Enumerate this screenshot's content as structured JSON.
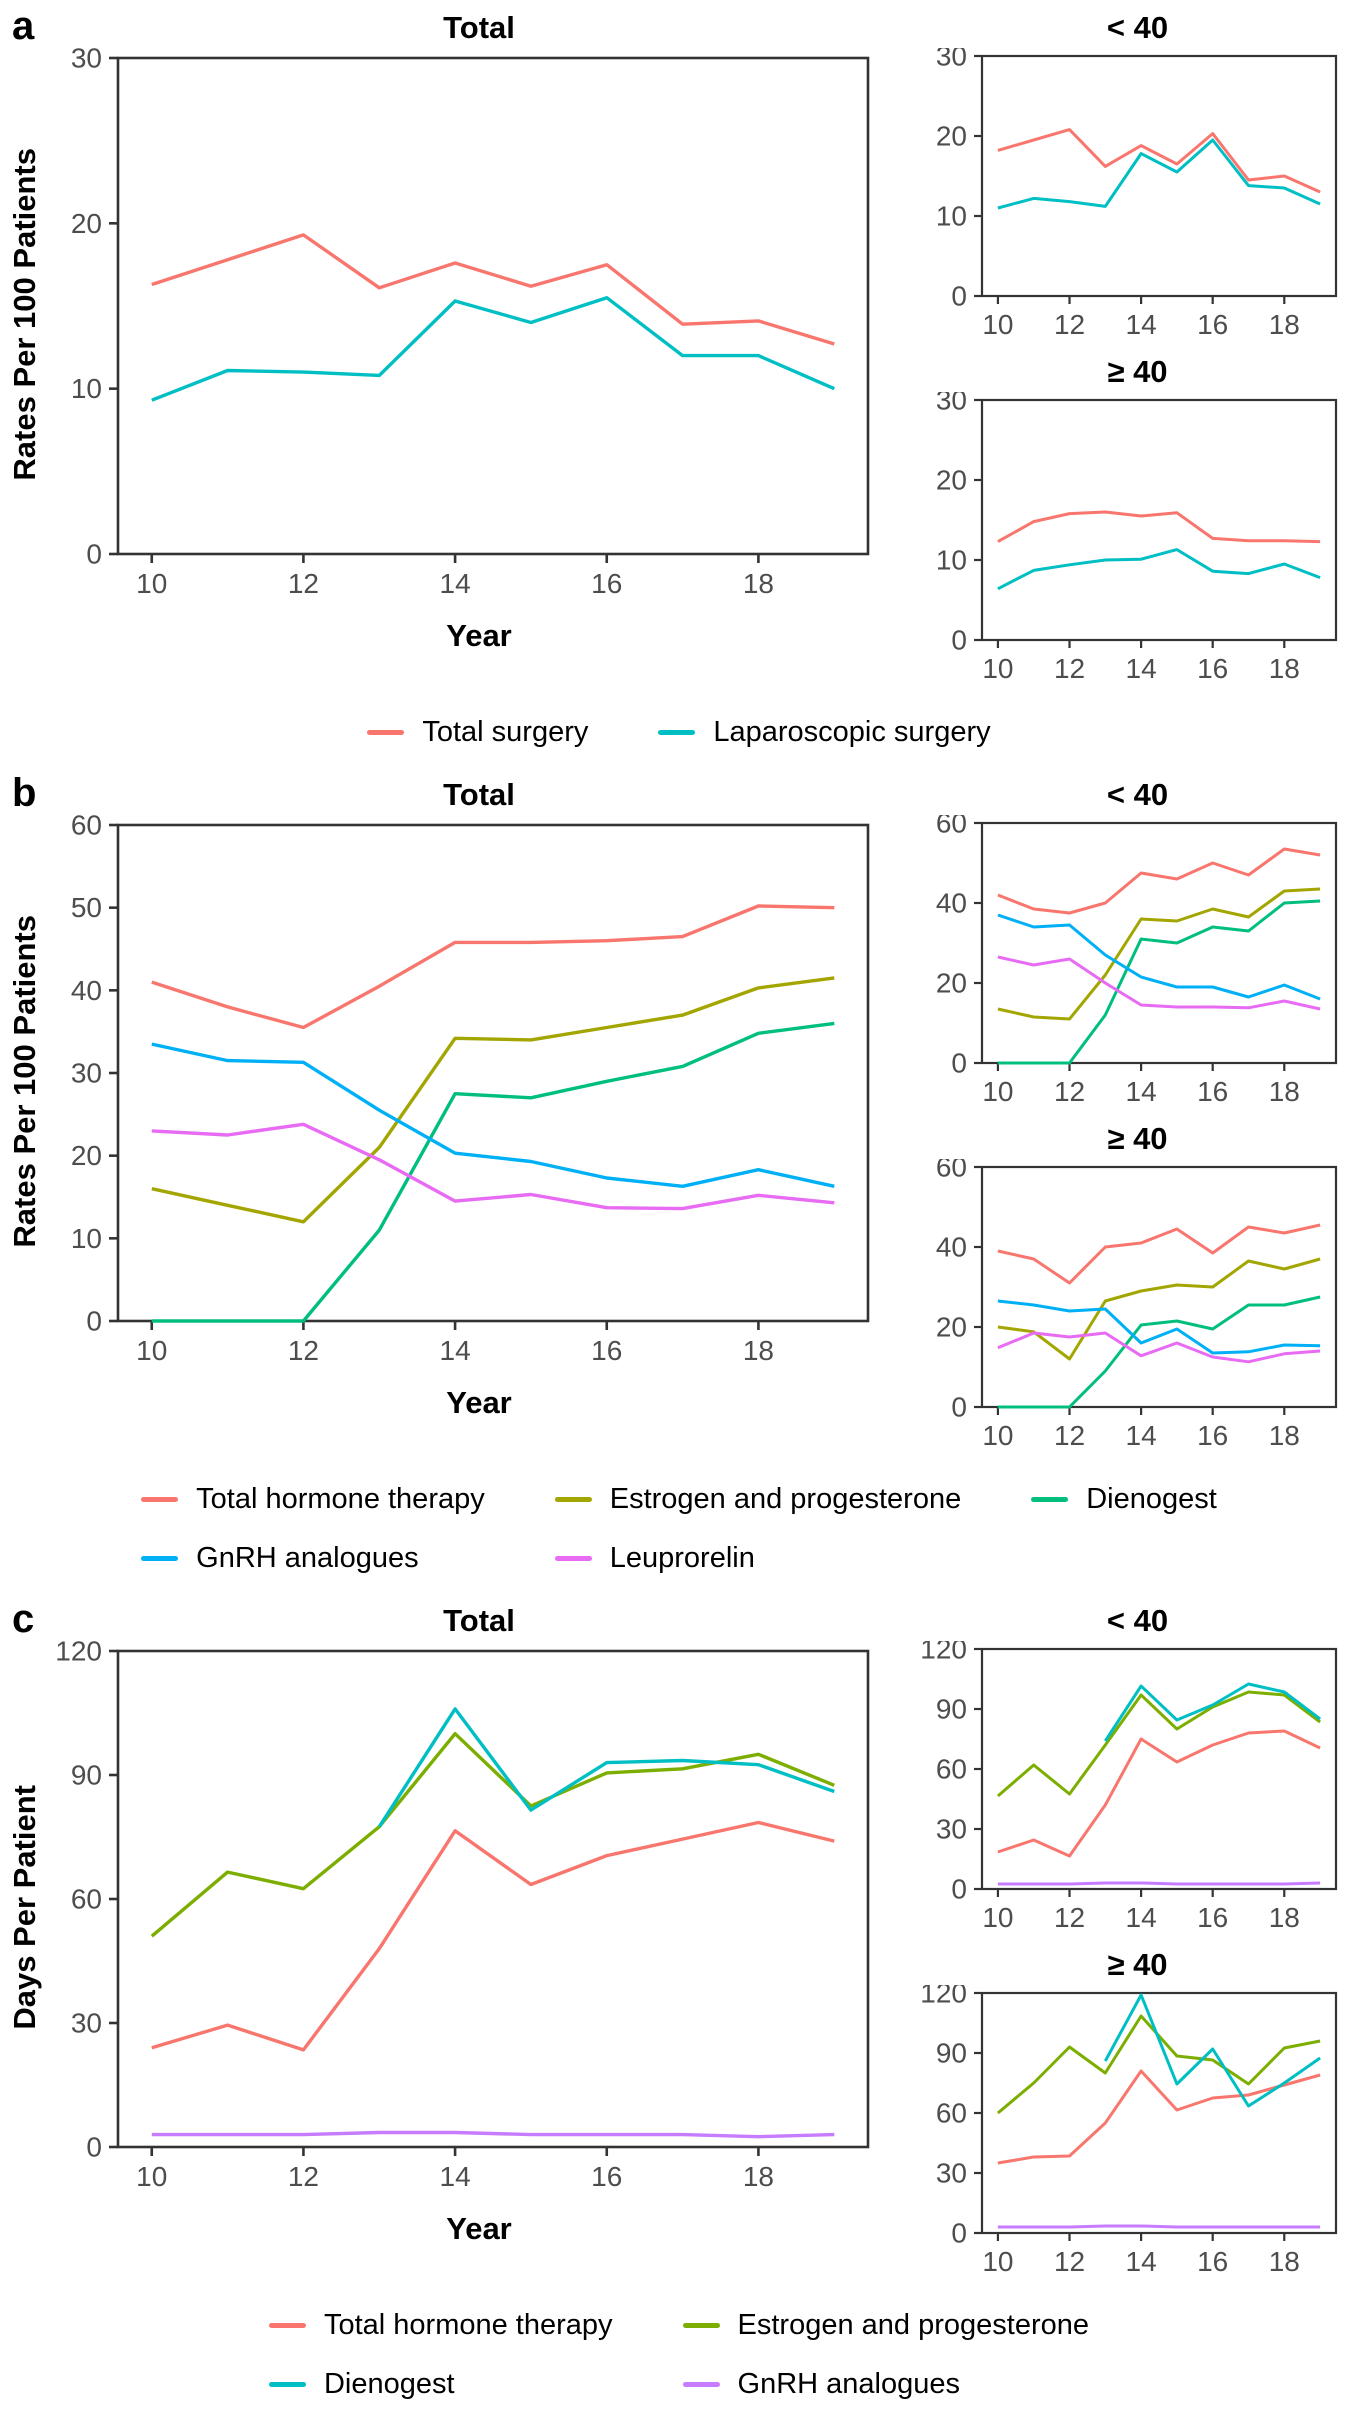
{
  "chart_data": {
    "type": "line",
    "x": [
      10,
      11,
      12,
      13,
      14,
      15,
      16,
      17,
      18,
      19
    ],
    "xticks": [
      10,
      12,
      14,
      16,
      18
    ],
    "grid": "off",
    "axis_color": "#333333",
    "tick_label_color": "#4d4d4d",
    "panels": [
      {
        "label": "a",
        "ylabel": "Rates Per 100 Patients",
        "xlabel": "Year",
        "legend_rows": [
          [
            {
              "label": "Total surgery",
              "color": "#F8766D"
            },
            {
              "label": "Laparoscopic surgery",
              "color": "#00BFC4"
            }
          ]
        ],
        "charts": [
          {
            "title": "Total",
            "size": "large",
            "ylim": [
              0,
              30
            ],
            "yticks": [
              0,
              10,
              20,
              30
            ],
            "series": [
              {
                "name": "Total surgery",
                "color": "#F8766D",
                "values": [
                  16.3,
                  17.8,
                  19.3,
                  16.1,
                  17.6,
                  16.2,
                  17.5,
                  13.9,
                  14.1,
                  12.7
                ]
              },
              {
                "name": "Laparoscopic surgery",
                "color": "#00BFC4",
                "values": [
                  9.3,
                  11.1,
                  11.0,
                  10.8,
                  15.3,
                  14.0,
                  15.5,
                  12.0,
                  12.0,
                  10.0
                ]
              }
            ]
          },
          {
            "title": "< 40",
            "size": "small",
            "ylim": [
              0,
              30
            ],
            "yticks": [
              0,
              10,
              20,
              30
            ],
            "series": [
              {
                "name": "Total surgery",
                "color": "#F8766D",
                "values": [
                  18.2,
                  19.5,
                  20.8,
                  16.2,
                  18.8,
                  16.5,
                  20.3,
                  14.5,
                  15.0,
                  13.0
                ]
              },
              {
                "name": "Laparoscopic surgery",
                "color": "#00BFC4",
                "values": [
                  11.0,
                  12.2,
                  11.8,
                  11.2,
                  17.8,
                  15.5,
                  19.5,
                  13.8,
                  13.5,
                  11.5
                ]
              }
            ]
          },
          {
            "title": "≥ 40",
            "size": "small",
            "ylim": [
              0,
              30
            ],
            "yticks": [
              0,
              10,
              20,
              30
            ],
            "series": [
              {
                "name": "Total surgery",
                "color": "#F8766D",
                "values": [
                  12.3,
                  14.8,
                  15.8,
                  16.0,
                  15.5,
                  15.9,
                  12.7,
                  12.4,
                  12.4,
                  12.3
                ]
              },
              {
                "name": "Laparoscopic surgery",
                "color": "#00BFC4",
                "values": [
                  6.4,
                  8.7,
                  9.4,
                  10.0,
                  10.1,
                  11.3,
                  8.6,
                  8.3,
                  9.5,
                  7.8
                ]
              }
            ]
          }
        ]
      },
      {
        "label": "b",
        "ylabel": "Rates Per 100 Patients",
        "xlabel": "Year",
        "legend_rows": [
          [
            {
              "label": "Total hormone therapy",
              "color": "#F8766D"
            },
            {
              "label": "Estrogen and progesterone",
              "color": "#A3A500"
            },
            {
              "label": "Dienogest",
              "color": "#00BF7D"
            }
          ],
          [
            {
              "label": "GnRH analogues",
              "color": "#00B0F6"
            },
            {
              "label": "Leuprorelin",
              "color": "#E76BF3"
            }
          ]
        ],
        "charts": [
          {
            "title": "Total",
            "size": "large",
            "ylim": [
              0,
              60
            ],
            "yticks": [
              0,
              10,
              20,
              30,
              40,
              50,
              60
            ],
            "series": [
              {
                "name": "Total hormone therapy",
                "color": "#F8766D",
                "values": [
                  41.0,
                  38.0,
                  35.5,
                  40.5,
                  45.8,
                  45.8,
                  46.0,
                  46.5,
                  50.2,
                  50.0
                ]
              },
              {
                "name": "Estrogen and progesterone",
                "color": "#A3A500",
                "values": [
                  16.0,
                  14.0,
                  12.0,
                  21.0,
                  34.2,
                  34.0,
                  35.5,
                  37.0,
                  40.3,
                  41.5
                ]
              },
              {
                "name": "Dienogest",
                "color": "#00BF7D",
                "values": [
                  0,
                  0,
                  0,
                  11.0,
                  27.5,
                  27.0,
                  29.0,
                  30.8,
                  34.8,
                  36.0
                ]
              },
              {
                "name": "GnRH analogues",
                "color": "#00B0F6",
                "values": [
                  33.5,
                  31.5,
                  31.3,
                  25.5,
                  20.3,
                  19.3,
                  17.3,
                  16.3,
                  18.3,
                  16.3
                ]
              },
              {
                "name": "Leuprorelin",
                "color": "#E76BF3",
                "values": [
                  23.0,
                  22.5,
                  23.8,
                  19.5,
                  14.5,
                  15.3,
                  13.7,
                  13.6,
                  15.2,
                  14.3
                ]
              }
            ]
          },
          {
            "title": "< 40",
            "size": "small",
            "ylim": [
              0,
              60
            ],
            "yticks": [
              0,
              20,
              40,
              60
            ],
            "series": [
              {
                "name": "Total hormone therapy",
                "color": "#F8766D",
                "values": [
                  42.0,
                  38.5,
                  37.5,
                  40.0,
                  47.5,
                  46.0,
                  50.0,
                  47.0,
                  53.5,
                  52.0
                ]
              },
              {
                "name": "Estrogen and progesterone",
                "color": "#A3A500",
                "values": [
                  13.5,
                  11.5,
                  11.0,
                  22.0,
                  36.0,
                  35.5,
                  38.5,
                  36.5,
                  43.0,
                  43.5
                ]
              },
              {
                "name": "Dienogest",
                "color": "#00BF7D",
                "values": [
                  0,
                  0,
                  0,
                  12.0,
                  31.0,
                  30.0,
                  34.0,
                  33.0,
                  40.0,
                  40.5
                ]
              },
              {
                "name": "GnRH analogues",
                "color": "#00B0F6",
                "values": [
                  37.0,
                  34.0,
                  34.5,
                  27.0,
                  21.5,
                  19.0,
                  19.0,
                  16.5,
                  19.5,
                  16.0
                ]
              },
              {
                "name": "Leuprorelin",
                "color": "#E76BF3",
                "values": [
                  26.5,
                  24.5,
                  26.0,
                  20.0,
                  14.5,
                  14.0,
                  14.0,
                  13.8,
                  15.5,
                  13.5
                ]
              }
            ]
          },
          {
            "title": "≥ 40",
            "size": "small",
            "ylim": [
              0,
              60
            ],
            "yticks": [
              0,
              20,
              40,
              60
            ],
            "series": [
              {
                "name": "Total hormone therapy",
                "color": "#F8766D",
                "values": [
                  39.0,
                  37.0,
                  31.0,
                  40.0,
                  41.0,
                  44.5,
                  38.5,
                  45.0,
                  43.5,
                  45.5
                ]
              },
              {
                "name": "Estrogen and progesterone",
                "color": "#A3A500",
                "values": [
                  20.0,
                  18.8,
                  12.0,
                  26.5,
                  29.0,
                  30.5,
                  30.0,
                  36.5,
                  34.5,
                  37.0
                ]
              },
              {
                "name": "Dienogest",
                "color": "#00BF7D",
                "values": [
                  0,
                  0,
                  0,
                  9.0,
                  20.5,
                  21.5,
                  19.5,
                  25.5,
                  25.5,
                  27.5
                ]
              },
              {
                "name": "GnRH analogues",
                "color": "#00B0F6",
                "values": [
                  26.5,
                  25.5,
                  24.0,
                  24.5,
                  16.0,
                  19.5,
                  13.5,
                  13.8,
                  15.5,
                  15.3
                ]
              },
              {
                "name": "Leuprorelin",
                "color": "#E76BF3",
                "values": [
                  14.8,
                  18.5,
                  17.5,
                  18.5,
                  12.8,
                  16.0,
                  12.5,
                  11.3,
                  13.3,
                  14.0
                ]
              }
            ]
          }
        ]
      },
      {
        "label": "c",
        "ylabel": "Days Per Patient",
        "xlabel": "Year",
        "legend_rows": [
          [
            {
              "label": "Total hormone therapy",
              "color": "#F8766D"
            },
            {
              "label": "Estrogen and progesterone",
              "color": "#7CAE00"
            }
          ],
          [
            {
              "label": "Dienogest",
              "color": "#00BFC4"
            },
            {
              "label": "GnRH analogues",
              "color": "#C77CFF"
            }
          ]
        ],
        "charts": [
          {
            "title": "Total",
            "size": "large",
            "ylim": [
              0,
              120
            ],
            "yticks": [
              0,
              30,
              60,
              90,
              120
            ],
            "series": [
              {
                "name": "Total hormone therapy",
                "color": "#F8766D",
                "values": [
                  24.0,
                  29.5,
                  23.5,
                  48.0,
                  76.5,
                  63.5,
                  70.5,
                  74.5,
                  78.5,
                  74.0
                ]
              },
              {
                "name": "Estrogen and progesterone",
                "color": "#7CAE00",
                "values": [
                  51.0,
                  66.5,
                  62.5,
                  77.5,
                  100.0,
                  82.5,
                  90.5,
                  91.5,
                  95.0,
                  87.5
                ]
              },
              {
                "name": "Dienogest",
                "color": "#00BFC4",
                "values": [
                  null,
                  null,
                  null,
                  77.5,
                  106.0,
                  81.5,
                  93.0,
                  93.5,
                  92.5,
                  86.0
                ]
              },
              {
                "name": "GnRH analogues",
                "color": "#C77CFF",
                "values": [
                  3.0,
                  3.0,
                  3.0,
                  3.5,
                  3.5,
                  3.0,
                  3.0,
                  3.0,
                  2.5,
                  3.0
                ]
              }
            ]
          },
          {
            "title": "< 40",
            "size": "small",
            "ylim": [
              0,
              120
            ],
            "yticks": [
              0,
              30,
              60,
              90,
              120
            ],
            "series": [
              {
                "name": "Total hormone therapy",
                "color": "#F8766D",
                "values": [
                  18.5,
                  24.5,
                  16.5,
                  42.0,
                  75.0,
                  63.5,
                  72.0,
                  78.0,
                  79.0,
                  70.5
                ]
              },
              {
                "name": "Estrogen and progesterone",
                "color": "#7CAE00",
                "values": [
                  46.5,
                  62.0,
                  47.5,
                  72.0,
                  97.0,
                  80.0,
                  91.0,
                  98.5,
                  97.0,
                  83.5
                ]
              },
              {
                "name": "Dienogest",
                "color": "#00BFC4",
                "values": [
                  null,
                  null,
                  null,
                  74.0,
                  101.5,
                  84.5,
                  92.0,
                  102.5,
                  98.5,
                  85.0
                ]
              },
              {
                "name": "GnRH analogues",
                "color": "#C77CFF",
                "values": [
                  2.5,
                  2.5,
                  2.5,
                  3.0,
                  3.0,
                  2.5,
                  2.5,
                  2.5,
                  2.5,
                  3.0
                ]
              }
            ]
          },
          {
            "title": "≥ 40",
            "size": "small",
            "ylim": [
              0,
              120
            ],
            "yticks": [
              0,
              30,
              60,
              90,
              120
            ],
            "series": [
              {
                "name": "Total hormone therapy",
                "color": "#F8766D",
                "values": [
                  35.0,
                  38.0,
                  38.5,
                  55.0,
                  81.0,
                  61.5,
                  67.5,
                  69.0,
                  74.0,
                  79.0
                ]
              },
              {
                "name": "Estrogen and progesterone",
                "color": "#7CAE00",
                "values": [
                  60.0,
                  75.0,
                  93.0,
                  80.0,
                  108.5,
                  88.5,
                  86.5,
                  74.5,
                  92.5,
                  96.0
                ]
              },
              {
                "name": "Dienogest",
                "color": "#00BFC4",
                "values": [
                  null,
                  null,
                  null,
                  86.0,
                  119.0,
                  74.5,
                  92.0,
                  63.5,
                  75.0,
                  87.5
                ]
              },
              {
                "name": "GnRH analogues",
                "color": "#C77CFF",
                "values": [
                  3.0,
                  3.0,
                  3.0,
                  3.5,
                  3.5,
                  3.0,
                  3.0,
                  3.0,
                  3.0,
                  3.0
                ]
              }
            ]
          }
        ]
      }
    ]
  }
}
